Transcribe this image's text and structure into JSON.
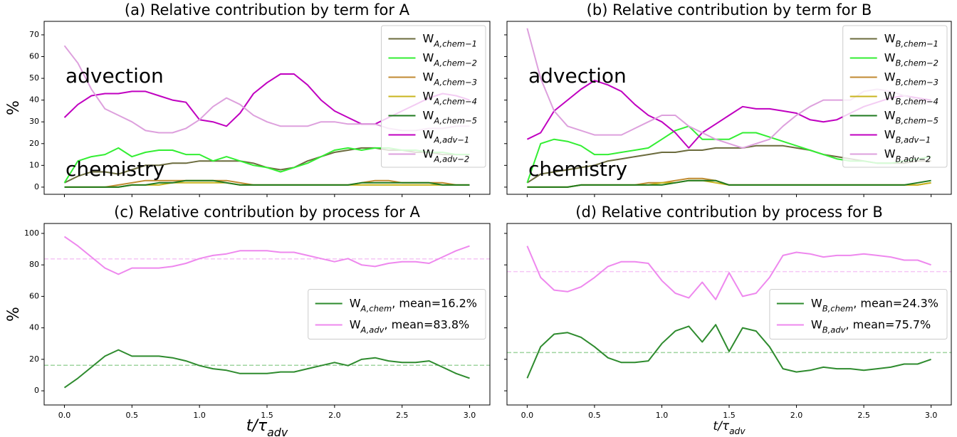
{
  "chart_data": [
    {
      "type": "line",
      "title": "(a) Relative contribution by term for A",
      "ylabel": "%",
      "x": [
        0,
        0.1,
        0.2,
        0.3,
        0.4,
        0.5,
        0.6,
        0.7,
        0.8,
        0.9,
        1,
        1.1,
        1.2,
        1.3,
        1.4,
        1.5,
        1.6,
        1.7,
        1.8,
        1.9,
        2,
        2.1,
        2.2,
        2.3,
        2.4,
        2.5,
        2.6,
        2.7,
        2.8,
        2.9,
        3
      ],
      "xlim": [
        -0.15,
        3.15
      ],
      "xticks": [
        0,
        0.5,
        1,
        1.5,
        2,
        2.5,
        3
      ],
      "show_xtick_labels": false,
      "ylim": [
        -3.3,
        76.2
      ],
      "yticks": [
        0,
        10,
        20,
        30,
        40,
        50,
        60,
        70
      ],
      "show_ytick_labels": true,
      "legend": "upper right",
      "annotations": [
        {
          "text": "advection",
          "color": "#f07cf0"
        },
        {
          "text": "chemistry",
          "color": "#c4bc8c"
        }
      ],
      "series": [
        {
          "name": "WA,chem−1",
          "color": "#6b6b3d",
          "values": [
            2,
            5,
            7,
            7,
            6,
            8,
            10,
            10,
            11,
            11,
            12,
            12,
            12,
            12,
            11,
            9,
            8,
            9,
            12,
            14,
            16,
            17,
            18,
            18,
            17,
            17,
            16,
            16,
            15,
            15,
            15
          ]
        },
        {
          "name": "WA,chem−2",
          "color": "#33ee33",
          "values": [
            2,
            12,
            14,
            15,
            18,
            14,
            16,
            17,
            17,
            15,
            15,
            12,
            14,
            12,
            10,
            9,
            7,
            9,
            11,
            14,
            17,
            18,
            17,
            18,
            18,
            17,
            17,
            16,
            16,
            15,
            15
          ]
        },
        {
          "name": "WA,chem−3",
          "color": "#c08a30",
          "values": [
            0,
            0,
            0,
            0,
            1,
            2,
            3,
            3,
            3,
            3,
            3,
            3,
            3,
            2,
            1,
            1,
            1,
            1,
            1,
            1,
            1,
            1,
            2,
            3,
            3,
            2,
            2,
            2,
            2,
            1,
            1
          ]
        },
        {
          "name": "WA,chem−4",
          "color": "#c8b41e",
          "values": [
            0,
            0,
            0,
            0,
            0,
            1,
            1,
            1,
            2,
            2,
            2,
            2,
            2,
            1,
            1,
            1,
            1,
            1,
            1,
            1,
            1,
            1,
            1,
            1,
            1,
            1,
            1,
            1,
            1,
            1,
            1
          ]
        },
        {
          "name": "WA,chem−5",
          "color": "#1f7a1f",
          "values": [
            0,
            0,
            0,
            0,
            0,
            1,
            1,
            2,
            2,
            3,
            3,
            3,
            2,
            1,
            1,
            1,
            1,
            1,
            1,
            1,
            1,
            1,
            2,
            2,
            2,
            2,
            2,
            2,
            1,
            1,
            1
          ]
        },
        {
          "name": "WA,adv−1",
          "color": "#c000c0",
          "values": [
            32,
            38,
            42,
            43,
            43,
            44,
            44,
            42,
            40,
            39,
            31,
            30,
            28,
            34,
            43,
            48,
            52,
            52,
            47,
            40,
            35,
            32,
            29,
            29,
            32,
            35,
            38,
            41,
            43,
            42,
            40
          ]
        },
        {
          "name": "WA,adv−2",
          "color": "#dda0dd",
          "values": [
            65,
            57,
            45,
            36,
            33,
            30,
            26,
            25,
            25,
            27,
            31,
            37,
            41,
            38,
            33,
            30,
            28,
            28,
            28,
            30,
            30,
            29,
            29,
            29,
            27,
            26,
            26,
            27,
            27,
            28,
            28
          ]
        }
      ]
    },
    {
      "type": "line",
      "title": "(b) Relative contribution by term for B",
      "x": [
        0,
        0.1,
        0.2,
        0.3,
        0.4,
        0.5,
        0.6,
        0.7,
        0.8,
        0.9,
        1,
        1.1,
        1.2,
        1.3,
        1.4,
        1.5,
        1.6,
        1.7,
        1.8,
        1.9,
        2,
        2.1,
        2.2,
        2.3,
        2.4,
        2.5,
        2.6,
        2.7,
        2.8,
        2.9,
        3
      ],
      "xlim": [
        -0.15,
        3.15
      ],
      "xticks": [
        0,
        0.5,
        1,
        1.5,
        2,
        2.5,
        3
      ],
      "show_xtick_labels": false,
      "ylim": [
        -3.3,
        76.2
      ],
      "yticks": [
        0,
        10,
        20,
        30,
        40,
        50,
        60,
        70
      ],
      "show_ytick_labels": false,
      "legend": "upper right",
      "annotations": [
        {
          "text": "advection",
          "color": "#f07cf0"
        },
        {
          "text": "chemistry",
          "color": "#c4bc8c"
        }
      ],
      "series": [
        {
          "name": "WB,chem−1",
          "color": "#6b6b3d",
          "values": [
            2,
            6,
            7,
            8,
            9,
            10,
            12,
            13,
            14,
            15,
            16,
            16,
            17,
            17,
            18,
            18,
            18,
            19,
            19,
            19,
            18,
            17,
            15,
            14,
            13,
            12,
            11,
            11,
            11,
            12,
            12
          ]
        },
        {
          "name": "WB,chem−2",
          "color": "#33ee33",
          "values": [
            2,
            20,
            22,
            21,
            19,
            15,
            15,
            16,
            17,
            18,
            22,
            26,
            28,
            22,
            22,
            22,
            25,
            25,
            23,
            21,
            19,
            17,
            15,
            13,
            12,
            12,
            11,
            11,
            12,
            13,
            14
          ]
        },
        {
          "name": "WB,chem−3",
          "color": "#c08a30",
          "values": [
            0,
            0,
            0,
            0,
            1,
            1,
            1,
            1,
            1,
            2,
            2,
            3,
            4,
            4,
            3,
            1,
            1,
            1,
            1,
            1,
            1,
            1,
            1,
            1,
            1,
            1,
            1,
            1,
            1,
            1,
            2
          ]
        },
        {
          "name": "WB,chem−4",
          "color": "#c8b41e",
          "values": [
            0,
            0,
            0,
            0,
            1,
            1,
            1,
            1,
            1,
            1,
            2,
            2,
            3,
            3,
            2,
            1,
            1,
            1,
            1,
            1,
            1,
            1,
            1,
            1,
            1,
            1,
            1,
            1,
            1,
            1,
            2
          ]
        },
        {
          "name": "WB,chem−5",
          "color": "#1f7a1f",
          "values": [
            0,
            0,
            0,
            0,
            1,
            1,
            1,
            1,
            1,
            1,
            1,
            2,
            3,
            3,
            3,
            1,
            1,
            1,
            1,
            1,
            1,
            1,
            1,
            1,
            1,
            1,
            1,
            1,
            1,
            2,
            3
          ]
        },
        {
          "name": "WB,adv−1",
          "color": "#c000c0",
          "values": [
            22,
            25,
            35,
            40,
            45,
            49,
            47,
            44,
            38,
            33,
            30,
            25,
            18,
            25,
            29,
            33,
            37,
            36,
            36,
            35,
            34,
            31,
            30,
            31,
            34,
            37,
            39,
            41,
            42,
            41,
            40
          ]
        },
        {
          "name": "WB,adv−2",
          "color": "#dda0dd",
          "values": [
            73,
            50,
            35,
            28,
            26,
            24,
            24,
            24,
            27,
            30,
            33,
            33,
            28,
            25,
            22,
            20,
            18,
            20,
            22,
            28,
            33,
            37,
            40,
            40,
            40,
            44,
            45,
            44,
            42,
            40,
            39
          ]
        }
      ]
    },
    {
      "type": "line",
      "title": "(c) Relative contribution by process for A",
      "ylabel": "%",
      "xlabel": "t/τadv",
      "x": [
        0,
        0.1,
        0.2,
        0.3,
        0.4,
        0.5,
        0.6,
        0.7,
        0.8,
        0.9,
        1,
        1.1,
        1.2,
        1.3,
        1.4,
        1.5,
        1.6,
        1.7,
        1.8,
        1.9,
        2,
        2.1,
        2.2,
        2.3,
        2.4,
        2.5,
        2.6,
        2.7,
        2.8,
        2.9,
        3
      ],
      "xlim": [
        -0.15,
        3.15
      ],
      "xticks": [
        {
          "value": 0,
          "label": "0.0"
        },
        {
          "value": 0.5,
          "label": "0.5"
        },
        {
          "value": 1,
          "label": "1.0"
        },
        {
          "value": 1.5,
          "label": "1.5"
        },
        {
          "value": 2,
          "label": "2.0"
        },
        {
          "value": 2.5,
          "label": "2.5"
        },
        {
          "value": 3,
          "label": "3.0"
        }
      ],
      "show_xtick_labels": true,
      "ylim": [
        -9,
        106.3
      ],
      "yticks": [
        0,
        20,
        40,
        60,
        80,
        100
      ],
      "show_ytick_labels": true,
      "legend": "center right",
      "hlines": [
        {
          "value": 16.2,
          "color": "#9fd49f"
        },
        {
          "value": 83.8,
          "color": "#f5c6f5"
        }
      ],
      "series": [
        {
          "name": "WA,chem, mean=16.2%",
          "color": "#2e8b2e",
          "values": [
            2,
            8,
            15,
            22,
            26,
            22,
            22,
            22,
            21,
            19,
            16,
            14,
            13,
            11,
            11,
            11,
            12,
            12,
            14,
            16,
            18,
            16,
            20,
            21,
            19,
            18,
            18,
            19,
            15,
            11,
            8
          ]
        },
        {
          "name": "WA,adv, mean=83.8%",
          "color": "#ee88ee",
          "values": [
            98,
            92,
            85,
            78,
            74,
            78,
            78,
            78,
            79,
            81,
            84,
            86,
            87,
            89,
            89,
            89,
            88,
            88,
            86,
            84,
            82,
            84,
            80,
            79,
            81,
            82,
            82,
            81,
            85,
            89,
            92
          ]
        }
      ]
    },
    {
      "type": "line",
      "title": "(d) Relative contribution by process for B",
      "xlabel": "t/τadv",
      "x": [
        0,
        0.1,
        0.2,
        0.3,
        0.4,
        0.5,
        0.6,
        0.7,
        0.8,
        0.9,
        1,
        1.1,
        1.2,
        1.3,
        1.4,
        1.5,
        1.6,
        1.7,
        1.8,
        1.9,
        2,
        2.1,
        2.2,
        2.3,
        2.4,
        2.5,
        2.6,
        2.7,
        2.8,
        2.9,
        3
      ],
      "xlim": [
        -0.15,
        3.15
      ],
      "xticks": [
        {
          "value": 0,
          "label": "0.0"
        },
        {
          "value": 0.5,
          "label": "0.5"
        },
        {
          "value": 1,
          "label": "1.0"
        },
        {
          "value": 1.5,
          "label": "1.5"
        },
        {
          "value": 2,
          "label": "2.0"
        },
        {
          "value": 2.5,
          "label": "2.5"
        },
        {
          "value": 3,
          "label": "3.0"
        }
      ],
      "show_xtick_labels": true,
      "ylim": [
        -9,
        106.3
      ],
      "yticks": [
        0,
        20,
        40,
        60,
        80,
        100
      ],
      "show_ytick_labels": false,
      "legend": "center right",
      "hlines": [
        {
          "value": 24.3,
          "color": "#9fd49f"
        },
        {
          "value": 75.7,
          "color": "#f5c6f5"
        }
      ],
      "series": [
        {
          "name": "WB,chem, mean=24.3%",
          "color": "#2e8b2e",
          "values": [
            8,
            28,
            36,
            37,
            34,
            28,
            21,
            18,
            18,
            19,
            30,
            38,
            41,
            31,
            42,
            25,
            40,
            38,
            28,
            14,
            12,
            13,
            15,
            14,
            14,
            13,
            14,
            15,
            17,
            17,
            20
          ]
        },
        {
          "name": "WB,adv, mean=75.7%",
          "color": "#ee88ee",
          "values": [
            92,
            72,
            64,
            63,
            66,
            72,
            79,
            82,
            82,
            81,
            70,
            62,
            59,
            69,
            58,
            75,
            60,
            62,
            72,
            86,
            88,
            87,
            85,
            86,
            86,
            87,
            86,
            85,
            83,
            83,
            80
          ]
        }
      ]
    }
  ]
}
